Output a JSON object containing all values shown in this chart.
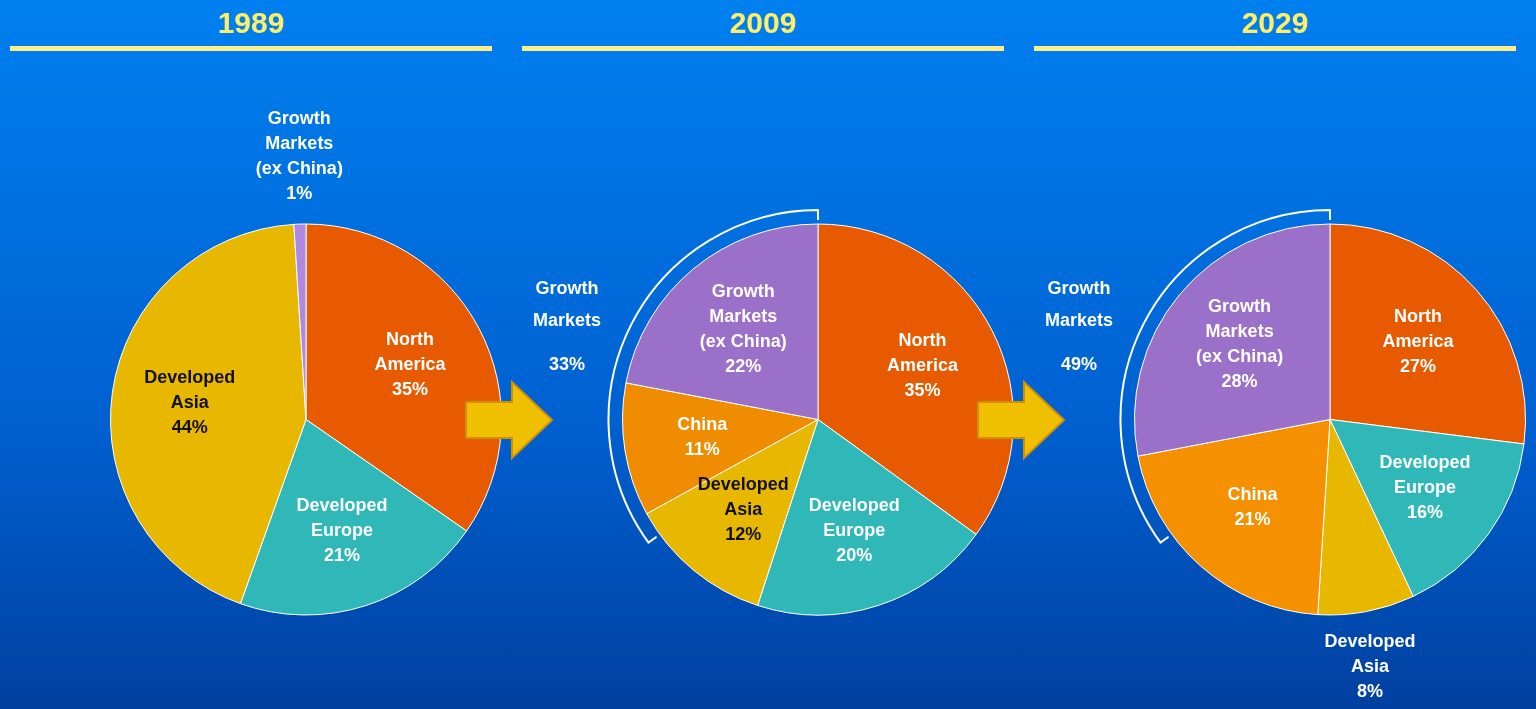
{
  "chart_data": [
    {
      "type": "pie",
      "title": "1989",
      "categories": [
        "North America",
        "Developed Europe",
        "Developed Asia",
        "Growth Markets (ex China)"
      ],
      "values": [
        35,
        21,
        44,
        1
      ],
      "value_labels": [
        "35%",
        "21%",
        "44%",
        "1%"
      ],
      "colors": [
        "#e85a00",
        "#30b8b8",
        "#e8b800",
        "#b088e0"
      ],
      "legend": false
    },
    {
      "type": "pie",
      "title": "2009",
      "categories": [
        "North America",
        "Developed Europe",
        "Developed Asia",
        "China",
        "Growth Markets (ex China)"
      ],
      "values": [
        35,
        20,
        12,
        11,
        22
      ],
      "value_labels": [
        "35%",
        "20%",
        "12%",
        "11%",
        "22%"
      ],
      "colors": [
        "#e85a00",
        "#30b8b8",
        "#e8b800",
        "#f08c00",
        "#9a70c8"
      ],
      "annotations": [
        "Growth Markets 33%"
      ],
      "legend": false
    },
    {
      "type": "pie",
      "title": "2029",
      "categories": [
        "North America",
        "Developed Europe",
        "Developed Asia",
        "China",
        "Growth Markets (ex China)"
      ],
      "values": [
        27,
        16,
        8,
        21,
        28
      ],
      "value_labels": [
        "27%",
        "16%",
        "8%",
        "21%",
        "28%"
      ],
      "colors": [
        "#e85a00",
        "#30b8b8",
        "#e8b800",
        "#f59000",
        "#9a70c8"
      ],
      "annotations": [
        "Growth Markets 49%"
      ],
      "legend": false
    }
  ]
}
